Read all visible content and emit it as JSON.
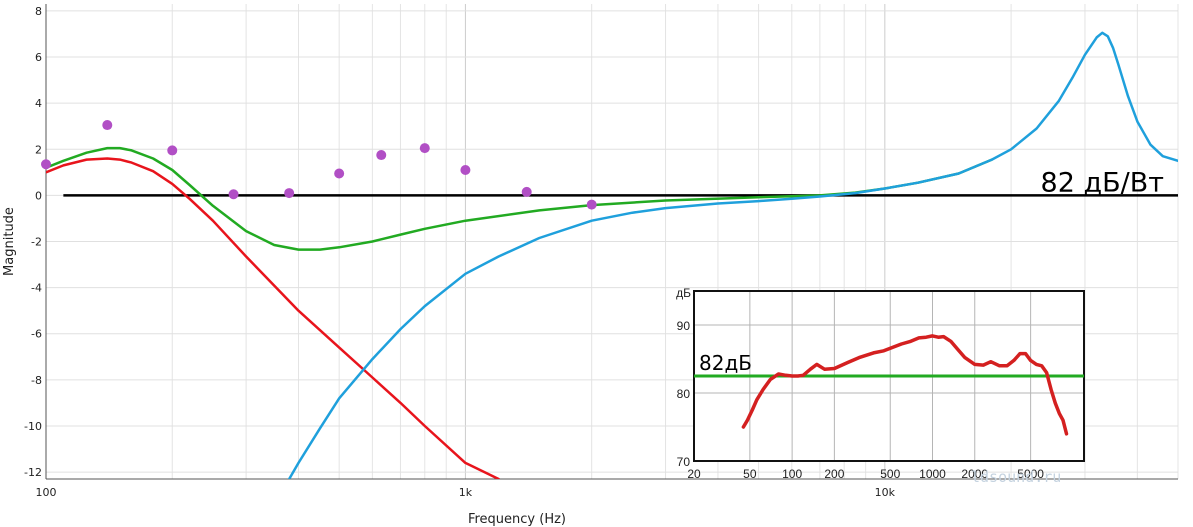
{
  "chart_data": [
    {
      "type": "line",
      "xlabel": "Frequency (Hz)",
      "ylabel": "Magnitude",
      "xscale": "log",
      "xlim": [
        100,
        50000
      ],
      "ylim": [
        -12.3,
        8.3
      ],
      "x_ticks": [
        {
          "value": 100,
          "label": "100"
        },
        {
          "value": 1000,
          "label": "1k"
        },
        {
          "value": 10000,
          "label": "10k"
        }
      ],
      "y_ticks": [
        8,
        6,
        4,
        2,
        0,
        -2,
        -4,
        -6,
        -8,
        -10,
        -12
      ],
      "grid": true,
      "annotation": "82 дБ/Вт",
      "reference_line": {
        "y": 0,
        "x_start": 110,
        "x_end": 50000,
        "color": "#000000"
      },
      "series": [
        {
          "color": "#e8141c",
          "x": [
            100,
            110,
            125,
            140,
            150,
            160,
            180,
            200,
            220,
            250,
            300,
            400,
            500,
            600,
            700,
            800,
            1000,
            1200
          ],
          "y": [
            1.0,
            1.3,
            1.55,
            1.6,
            1.55,
            1.42,
            1.05,
            0.5,
            -0.15,
            -1.1,
            -2.65,
            -5.0,
            -6.6,
            -7.9,
            -9.0,
            -10.0,
            -11.6,
            -12.3
          ]
        },
        {
          "color": "#22aa22",
          "x": [
            100,
            110,
            125,
            140,
            150,
            160,
            180,
            200,
            220,
            250,
            300,
            350,
            400,
            450,
            500,
            600,
            700,
            800,
            1000,
            1500,
            2000,
            3000,
            5000,
            7000,
            8500,
            10000,
            12000,
            15000,
            18000
          ],
          "y": [
            1.2,
            1.5,
            1.85,
            2.05,
            2.05,
            1.95,
            1.6,
            1.1,
            0.45,
            -0.45,
            -1.55,
            -2.15,
            -2.35,
            -2.35,
            -2.25,
            -2.0,
            -1.7,
            -1.45,
            -1.1,
            -0.65,
            -0.42,
            -0.22,
            -0.08,
            0.0,
            0.12,
            0.3,
            0.55,
            0.95,
            1.55
          ]
        },
        {
          "color": "#1fa0dc",
          "x": [
            380,
            400,
            450,
            500,
            600,
            700,
            800,
            1000,
            1200,
            1500,
            2000,
            2500,
            3000,
            4000,
            5000,
            6000,
            7000,
            8500,
            10000,
            12000,
            15000,
            18000,
            20000,
            23000,
            26000,
            28000,
            30000,
            32000,
            33000,
            34000,
            35000,
            36000,
            38000,
            40000,
            43000,
            46000,
            50000
          ],
          "y": [
            -12.3,
            -11.6,
            -10.1,
            -8.8,
            -7.1,
            -5.8,
            -4.8,
            -3.4,
            -2.65,
            -1.85,
            -1.1,
            -0.75,
            -0.55,
            -0.35,
            -0.25,
            -0.15,
            -0.05,
            0.1,
            0.3,
            0.55,
            0.95,
            1.55,
            2.0,
            2.9,
            4.1,
            5.1,
            6.1,
            6.85,
            7.05,
            6.9,
            6.4,
            5.7,
            4.3,
            3.2,
            2.2,
            1.7,
            1.5
          ]
        }
      ],
      "points": {
        "color": "#b14fc5",
        "x": [
          100,
          140,
          200,
          280,
          380,
          500,
          630,
          800,
          1000,
          1400,
          2000
        ],
        "y": [
          1.35,
          3.05,
          1.95,
          0.05,
          0.1,
          0.95,
          1.75,
          2.05,
          1.1,
          0.15,
          -0.4
        ]
      }
    },
    {
      "type": "line",
      "ylabel": "дБ",
      "xscale": "log",
      "xlim": [
        20,
        12000
      ],
      "ylim": [
        70,
        95
      ],
      "x_ticks": [
        {
          "value": 20,
          "label": "20"
        },
        {
          "value": 50,
          "label": "50"
        },
        {
          "value": 100,
          "label": "100"
        },
        {
          "value": 200,
          "label": "200"
        },
        {
          "value": 500,
          "label": "500"
        },
        {
          "value": 1000,
          "label": "1000"
        },
        {
          "value": 2000,
          "label": "2000"
        },
        {
          "value": 5000,
          "label": "5000"
        }
      ],
      "y_ticks": [
        90,
        80,
        70
      ],
      "grid": true,
      "annotation": "82дБ",
      "watermark": "ldsound.ru",
      "reference_line": {
        "y": 82.5,
        "color": "#22aa22"
      },
      "series": [
        {
          "color": "#d42020",
          "x": [
            45,
            48,
            52,
            56,
            62,
            70,
            80,
            90,
            100,
            110,
            120,
            135,
            150,
            170,
            200,
            250,
            300,
            380,
            450,
            520,
            600,
            700,
            800,
            900,
            1000,
            1100,
            1200,
            1350,
            1500,
            1700,
            2000,
            2300,
            2600,
            3000,
            3400,
            3800,
            4200,
            4600,
            5000,
            5500,
            6000,
            6500,
            7000,
            7500,
            8000,
            8500,
            9000
          ],
          "y": [
            75.0,
            76.0,
            77.5,
            79.0,
            80.5,
            82.0,
            82.8,
            82.6,
            82.5,
            82.5,
            82.6,
            83.5,
            84.2,
            83.5,
            83.6,
            84.5,
            85.2,
            85.9,
            86.2,
            86.7,
            87.2,
            87.6,
            88.1,
            88.2,
            88.4,
            88.2,
            88.3,
            87.6,
            86.5,
            85.2,
            84.2,
            84.1,
            84.6,
            84.0,
            84.0,
            84.8,
            85.8,
            85.8,
            84.8,
            84.2,
            84.0,
            83.0,
            80.5,
            78.5,
            77.0,
            76.0,
            74.0
          ]
        }
      ]
    }
  ]
}
